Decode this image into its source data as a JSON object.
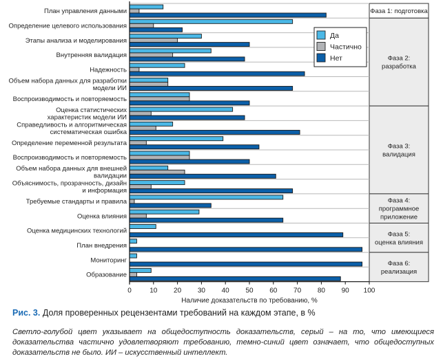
{
  "chart_data": {
    "type": "bar",
    "orientation": "horizontal",
    "title": "",
    "xlabel": "Наличие доказательств по требованию, %",
    "ylabel": "",
    "xlim": [
      0,
      100
    ],
    "xticks": [
      "0",
      "10",
      "20",
      "30",
      "40",
      "50",
      "60",
      "70",
      "80",
      "90",
      "100"
    ],
    "grid": "horizontal row separators",
    "legend_position": "top-right",
    "categories": [
      [
        "План управления данными"
      ],
      [
        "Определение целевого использования"
      ],
      [
        "Этапы анализа и моделирования"
      ],
      [
        "Внутренняя валидация"
      ],
      [
        "Надежность"
      ],
      [
        "Объем набора данных для разработки",
        "модели ИИ"
      ],
      [
        "Воспроизводимость и повторяемость"
      ],
      [
        "Оценка статистических",
        "характеристик модели ИИ"
      ],
      [
        "Справедливость и алгоритмическая",
        "систематическая ошибка"
      ],
      [
        "Определение переменной результата"
      ],
      [
        "Воспроизводимость и повторяемость"
      ],
      [
        "Объем набора данных для внешней",
        "валидации"
      ],
      [
        "Объяснимость, прозрачность, дизайн",
        "и информация"
      ],
      [
        "Требуемые стандарты и правила"
      ],
      [
        "Оценка влияния"
      ],
      [
        "Оценка медицинских технологий"
      ],
      [
        "План внедрения"
      ],
      [
        "Мониторинг"
      ],
      [
        "Образование"
      ]
    ],
    "series": [
      {
        "name": "Да",
        "color": "#4bb8e6",
        "values": [
          14,
          68,
          30,
          34,
          23,
          16,
          25,
          43,
          18,
          39,
          25,
          16,
          23,
          64,
          29,
          11,
          3,
          3,
          9
        ]
      },
      {
        "name": "Частично",
        "color": "#b1b3b6",
        "values": [
          4,
          10,
          20,
          18,
          4,
          16,
          25,
          9,
          11,
          7,
          25,
          23,
          9,
          2,
          7,
          0,
          0,
          0,
          3
        ]
      },
      {
        "name": "Нет",
        "color": "#0b5fa8",
        "values": [
          82,
          22,
          50,
          48,
          73,
          68,
          50,
          48,
          71,
          54,
          50,
          61,
          68,
          34,
          64,
          89,
          97,
          97,
          88
        ]
      }
    ],
    "phases": [
      {
        "label": [
          "Фаза 1: подготовка"
        ],
        "rows": 1,
        "shaded": false
      },
      {
        "label": [
          "Фаза 2:",
          "разработка"
        ],
        "rows": 6,
        "shaded": true
      },
      {
        "label": [
          "Фаза 3:",
          "валидация"
        ],
        "rows": 6,
        "shaded": true
      },
      {
        "label": [
          "Фаза 4:",
          "программное",
          "приложение"
        ],
        "rows": 2,
        "shaded": true
      },
      {
        "label": [
          "Фаза 5:",
          "оценка влияния"
        ],
        "rows": 2,
        "shaded": true
      },
      {
        "label": [
          "Фаза 6:",
          "реализация"
        ],
        "rows": 2,
        "shaded": true
      }
    ]
  },
  "caption": {
    "figure_number": "Рис. 3.",
    "text": " Доля проверенных рецензентами требований на каждом этапе, в %"
  },
  "note": "Светло-голубой цвет указывает на общедоступность доказательств, серый – на то, что имеющиеся доказательства частично удовлетворяют требованию, темно-синий цвет означает, что общедоступных доказательств не было. ИИ – искусственный интеллект."
}
